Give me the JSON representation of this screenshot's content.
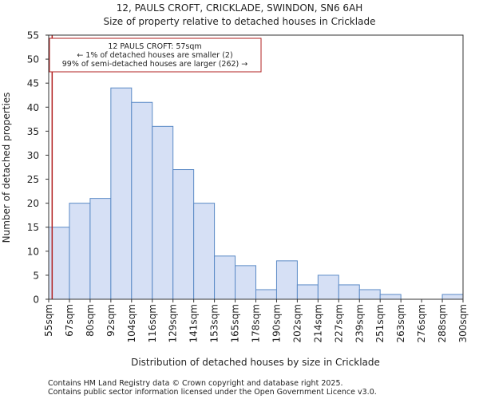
{
  "chart_data": {
    "type": "bar",
    "title": "12, PAULS CROFT, CRICKLADE, SWINDON, SN6 6AH",
    "subtitle": "Size of property relative to detached houses in Cricklade",
    "xlabel": "Distribution of detached houses by size in Cricklade",
    "ylabel": "Number of detached properties",
    "ylim": [
      0,
      55
    ],
    "yticks": [
      0,
      5,
      10,
      15,
      20,
      25,
      30,
      35,
      40,
      45,
      50,
      55
    ],
    "bin_edges": [
      "55sqm",
      "67sqm",
      "80sqm",
      "92sqm",
      "104sqm",
      "116sqm",
      "129sqm",
      "141sqm",
      "153sqm",
      "165sqm",
      "178sqm",
      "190sqm",
      "202sqm",
      "214sqm",
      "227sqm",
      "239sqm",
      "251sqm",
      "263sqm",
      "276sqm",
      "288sqm",
      "300sqm"
    ],
    "values": [
      15,
      20,
      21,
      44,
      41,
      36,
      27,
      20,
      9,
      7,
      2,
      8,
      3,
      5,
      3,
      2,
      1,
      0,
      0,
      1
    ],
    "bar_color": "#d6e0f5",
    "bar_edge_color": "#5b8ac6",
    "marker": {
      "value_sqm": 57,
      "color": "#b22222"
    },
    "annotation": [
      "12 PAULS CROFT: 57sqm",
      "← 1% of detached houses are smaller (2)",
      "99% of semi-detached houses are larger (262) →"
    ]
  },
  "footer": {
    "line1": "Contains HM Land Registry data © Crown copyright and database right 2025.",
    "line2": "Contains public sector information licensed under the Open Government Licence v3.0."
  }
}
